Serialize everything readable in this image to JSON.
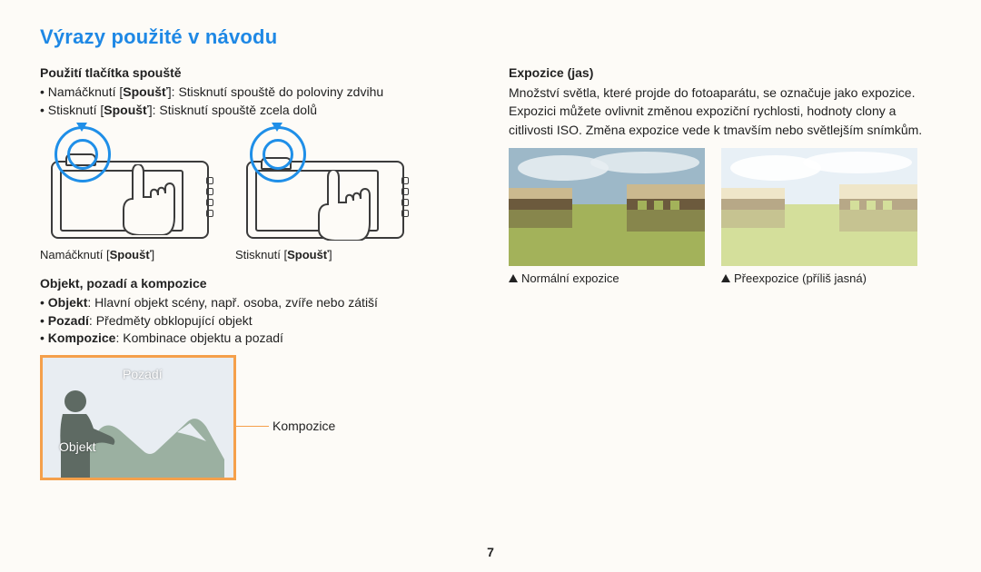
{
  "title": {
    "text": "Výrazy použité v návodu",
    "color": "#1e88e5",
    "font_size_pt": 18
  },
  "left": {
    "shutter": {
      "heading": "Použití tlačítka spouště",
      "items": [
        {
          "prefix": "Namáčknutí [",
          "bold": "Spoušť",
          "suffix": "]: Stisknutí spouště do poloviny zdvihu"
        },
        {
          "prefix": "Stisknutí [",
          "bold": "Spoušť",
          "suffix": "]: Stisknutí spouště zcela dolů"
        }
      ],
      "ring_color": "#1f8fe8",
      "diagrams": [
        {
          "caption_prefix": "Namáčknutí [",
          "caption_bold": "Spoušť",
          "caption_suffix": "]"
        },
        {
          "caption_prefix": "Stisknutí [",
          "caption_bold": "Spoušť",
          "caption_suffix": "]"
        }
      ]
    },
    "composition": {
      "heading": "Objekt, pozadí a kompozice",
      "items": [
        {
          "bold": "Objekt",
          "rest": ": Hlavní objekt scény, např. osoba, zvíře nebo zátiší"
        },
        {
          "bold": "Pozadí",
          "rest": ": Předměty obklopující objekt"
        },
        {
          "bold": "Kompozice",
          "rest": ": Kombinace objektu a pozadí"
        }
      ],
      "labels": {
        "pozadi": "Pozadí",
        "objekt": "Objekt",
        "kompozice": "Kompozice"
      },
      "frame_color": "#f5a04b",
      "bg_sky": "#e8edf2",
      "mountain_color": "#9bb0a1",
      "person_color": "#5e6a63"
    }
  },
  "right": {
    "heading": "Expozice (jas)",
    "paragraph": "Množství světla, které projde do fotoaparátu, se označuje jako expozice. Expozici můžete ovlivnit změnou expoziční rychlosti, hodnoty clony a citlivosti ISO. Změna expozice vede k tmavším nebo světlejším snímkům.",
    "photos": [
      {
        "caption": "Normální expozice",
        "sky": "#9db8c8",
        "cloud": "#e7edf1",
        "water": "#a3b25a",
        "building": "#cbb98f",
        "shadow": "#6c5a3d"
      },
      {
        "caption": "Přeexpozice (příliš jasná)",
        "sky": "#e8f0f6",
        "cloud": "#ffffff",
        "water": "#d4df9b",
        "building": "#efe6c9",
        "shadow": "#b7a887"
      }
    ]
  },
  "page_number": "7"
}
